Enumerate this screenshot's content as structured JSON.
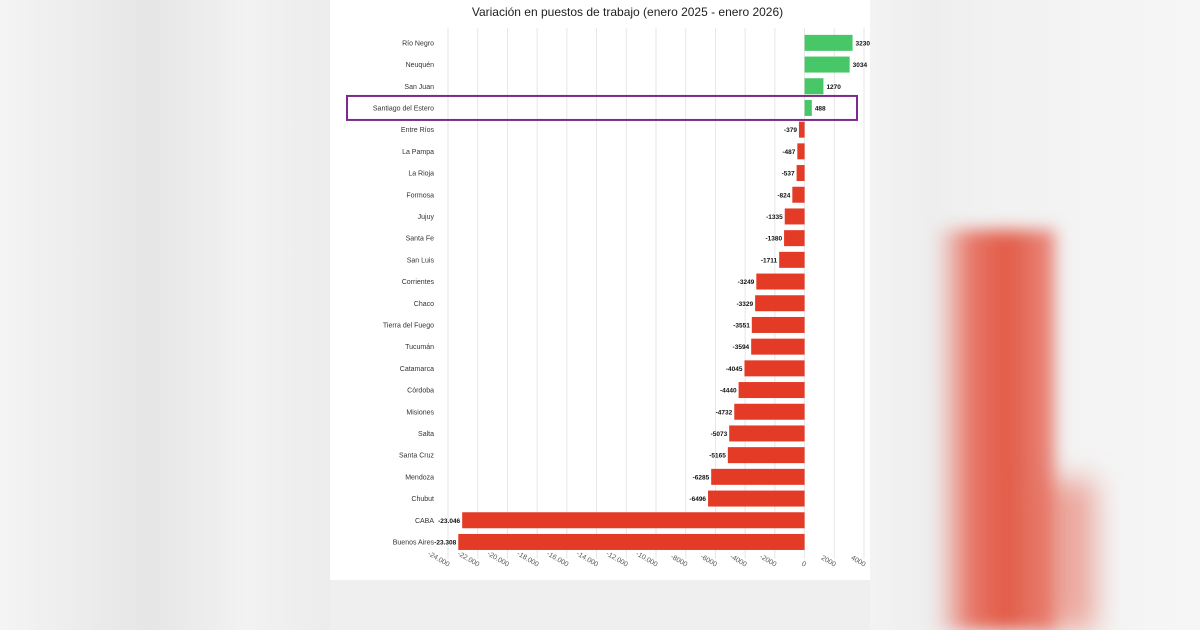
{
  "chart_data": {
    "type": "bar",
    "orientation": "horizontal",
    "title": "Variación en puestos de trabajo (enero 2025 - enero 2026)",
    "categories": [
      "Río Negro",
      "Neuquén",
      "San Juan",
      "Santiago del Estero",
      "Entre Ríos",
      "La Pampa",
      "La Rioja",
      "Formosa",
      "Jujuy",
      "Santa Fe",
      "San Luis",
      "Corrientes",
      "Chaco",
      "Tierra del Fuego",
      "Tucumán",
      "Catamarca",
      "Córdoba",
      "Misiones",
      "Salta",
      "Santa Cruz",
      "Mendoza",
      "Chubut",
      "CABA",
      "Buenos Aires"
    ],
    "values": [
      3230,
      3034,
      1270,
      488,
      -379,
      -487,
      -537,
      -824,
      -1335,
      -1380,
      -1711,
      -3249,
      -3329,
      -3551,
      -3594,
      -4045,
      -4440,
      -4732,
      -5073,
      -5165,
      -6285,
      -6496,
      -23046,
      -23308
    ],
    "value_labels": [
      "3230",
      "3034",
      "1270",
      "488",
      "-379",
      "-487",
      "-537",
      "-824",
      "-1335",
      "-1380",
      "-1711",
      "-3249",
      "-3329",
      "-3551",
      "-3594",
      "-4045",
      "-4440",
      "-4732",
      "-5073",
      "-5165",
      "-6285",
      "-6496",
      "-23.046",
      "-23.308"
    ],
    "x_ticks": [
      -24000,
      -22000,
      -20000,
      -18000,
      -16000,
      -14000,
      -12000,
      -10000,
      -8000,
      -6000,
      -4000,
      -2000,
      0,
      2000,
      4000
    ],
    "x_tick_labels": [
      "-24.000",
      "-22.000",
      "-20.000",
      "-18.000",
      "-16.000",
      "-14.000",
      "-12.000",
      "-10.000",
      "-8000",
      "-6000",
      "-4000",
      "-2000",
      "0",
      "2000",
      "4000"
    ],
    "xlim": [
      -24000,
      4000
    ],
    "grid": true,
    "highlighted_category": "Santiago del Estero",
    "colors": {
      "positive": "#47c768",
      "negative": "#e33b26",
      "highlight_box": "#7d2a8c",
      "grid": "#e6e6e6"
    }
  }
}
